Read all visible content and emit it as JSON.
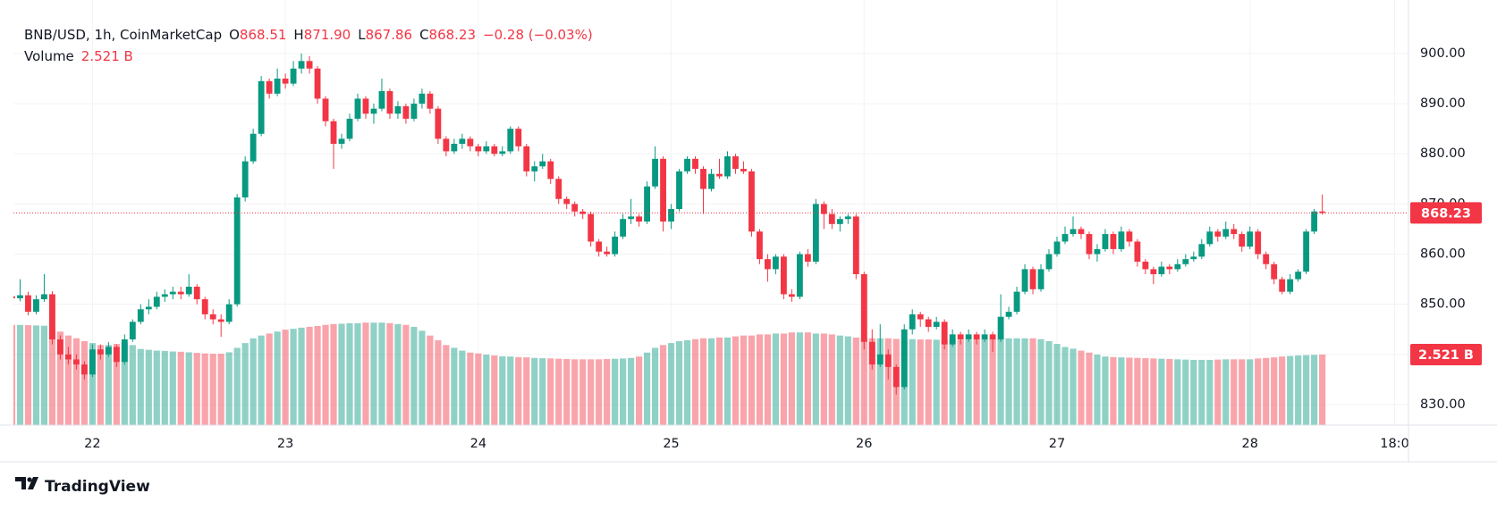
{
  "chart_data": {
    "type": "candlestick",
    "title": "BNB/USD, 1h, CoinMarketCap",
    "ohlc_legend": [
      {
        "key": "O",
        "text": "868.51"
      },
      {
        "key": "H",
        "text": "871.90"
      },
      {
        "key": "L",
        "text": "867.86"
      },
      {
        "key": "C",
        "text": "868.23"
      }
    ],
    "change": "−0.28 (−0.03%)",
    "volume_name": "Volume",
    "last_volume_label": "2.521 B",
    "watermark": "TradingView",
    "up_color": "#089981",
    "down_color": "#f23645",
    "grid": true,
    "ylim": [
      825.9,
      908
    ],
    "yticks": [
      {
        "value": 830,
        "label": "830.00"
      },
      {
        "value": 840,
        "label": "840.00"
      },
      {
        "value": 850,
        "label": "850.00"
      },
      {
        "value": 860,
        "label": "860.00"
      },
      {
        "value": 870,
        "label": "870.00"
      },
      {
        "value": 880,
        "label": "880.00"
      },
      {
        "value": 890,
        "label": "890.00"
      },
      {
        "value": 900,
        "label": "900.00"
      }
    ],
    "y2lim": [
      0,
      14.7
    ],
    "categories": [
      null,
      null,
      null,
      null,
      null,
      null,
      null,
      null,
      null,
      null,
      "22",
      null,
      null,
      null,
      null,
      null,
      null,
      null,
      null,
      null,
      null,
      null,
      null,
      null,
      null,
      null,
      null,
      null,
      null,
      null,
      null,
      null,
      null,
      null,
      "23",
      null,
      null,
      null,
      null,
      null,
      null,
      null,
      null,
      null,
      null,
      null,
      null,
      null,
      null,
      null,
      null,
      null,
      null,
      null,
      null,
      null,
      null,
      null,
      "24",
      null,
      null,
      null,
      null,
      null,
      null,
      null,
      null,
      null,
      null,
      null,
      null,
      null,
      null,
      null,
      null,
      null,
      null,
      null,
      null,
      null,
      null,
      null,
      "25",
      null,
      null,
      null,
      null,
      null,
      null,
      null,
      null,
      null,
      null,
      null,
      null,
      null,
      null,
      null,
      null,
      null,
      null,
      null,
      null,
      null,
      null,
      null,
      "26",
      null,
      null,
      null,
      null,
      null,
      null,
      null,
      null,
      null,
      null,
      null,
      null,
      null,
      null,
      null,
      null,
      null,
      null,
      null,
      null,
      null,
      null,
      null,
      "27",
      null,
      null,
      null,
      null,
      null,
      null,
      null,
      null,
      null,
      null,
      null,
      null,
      null,
      null,
      null,
      null,
      null,
      null,
      null,
      null,
      null,
      null,
      null,
      "28",
      null,
      null,
      null,
      null,
      null,
      null,
      null,
      null,
      null,
      null,
      null,
      null,
      null,
      null,
      null,
      null,
      null,
      "18:0",
      null
    ],
    "open": [
      851.6,
      851.2,
      851.8,
      848.5,
      851,
      852,
      843,
      840,
      839,
      838,
      836,
      841,
      840,
      841.5,
      838.5,
      843,
      846.5,
      849,
      849.5,
      851.5,
      852,
      852.5,
      852,
      853.5,
      851,
      848,
      847,
      846.5,
      850,
      871.3,
      878.5,
      884,
      894.5,
      892,
      895,
      894,
      897,
      898.5,
      897,
      891,
      886.5,
      882,
      883,
      887,
      891,
      888,
      889,
      892.5,
      888,
      889.5,
      887,
      890,
      892,
      889,
      883,
      880.5,
      882,
      883,
      881.5,
      880.5,
      881.5,
      880,
      880.5,
      885,
      881.5,
      876.5,
      877.5,
      878.5,
      875,
      871,
      870,
      868.5,
      868,
      862.5,
      860.5,
      860,
      863.5,
      867,
      867.5,
      866.5,
      873.5,
      879,
      866.5,
      869,
      876.5,
      879,
      877,
      873,
      876,
      875.5,
      879.5,
      877,
      876.5,
      864.5,
      859,
      857,
      859.5,
      852,
      851.5,
      860,
      858.5,
      870,
      868,
      866,
      867,
      867.5,
      856,
      842.5,
      838,
      840,
      837.5,
      833.5,
      845,
      848,
      847,
      845.5,
      846.5,
      842,
      844,
      843,
      844,
      843,
      844,
      843,
      847.5,
      848.5,
      852.5,
      857,
      853,
      857,
      860,
      862.5,
      864,
      865,
      864,
      860,
      861,
      864,
      861,
      864.5,
      862.5,
      858.5,
      857,
      856,
      857.5,
      857,
      858,
      859,
      859.5,
      862,
      864.5,
      863.5,
      865,
      864,
      861.5,
      864.5,
      860,
      858,
      855,
      852.5,
      855,
      856.5,
      864.5,
      868.51,
      null,
      null,
      null,
      null,
      null,
      null,
      null,
      null,
      null,
      null
    ],
    "high": [
      852.4,
      855,
      852.5,
      851.8,
      856,
      852.6,
      843.8,
      841.5,
      840,
      838.6,
      842,
      842,
      842.5,
      842,
      844,
      847,
      850,
      851,
      852.5,
      853,
      853.5,
      853.5,
      856,
      854,
      851.5,
      849,
      848,
      851,
      872,
      879.5,
      885,
      895.5,
      895,
      897,
      896,
      898.5,
      900,
      899.5,
      897.5,
      891.5,
      887,
      884,
      888,
      892,
      891.5,
      890,
      895,
      893,
      890.5,
      890,
      891,
      893,
      892.5,
      889.5,
      883.5,
      883,
      884,
      883.5,
      882,
      882.5,
      882,
      881.5,
      885.5,
      885.5,
      882,
      878.5,
      880,
      879,
      875.5,
      871.5,
      870.5,
      869,
      868.5,
      863,
      861.5,
      864.5,
      868,
      871,
      868,
      874.5,
      881.5,
      879.5,
      870,
      877,
      879.5,
      879.5,
      877.5,
      877,
      879,
      880.5,
      880,
      878.5,
      877,
      865,
      860,
      860,
      860,
      853,
      860.5,
      861,
      871,
      870.5,
      869,
      867.5,
      868,
      868,
      856.5,
      845,
      846,
      841,
      838,
      846,
      849,
      848.5,
      847.5,
      847.5,
      847,
      845,
      844.5,
      845,
      844.5,
      845,
      844.5,
      852,
      849.5,
      853.5,
      858,
      857.5,
      858,
      861,
      863.5,
      865.5,
      867.5,
      865.5,
      864.5,
      862,
      865,
      864.5,
      865.5,
      865,
      863,
      859,
      857.5,
      858.5,
      858,
      859,
      860,
      860.5,
      863,
      865.5,
      865,
      866.5,
      866,
      864.5,
      865.5,
      865,
      860.5,
      858.5,
      855.5,
      856,
      857,
      865,
      869,
      871.9,
      null,
      null,
      null,
      null,
      null,
      null,
      null,
      null,
      null,
      null
    ],
    "low": [
      850.5,
      850.6,
      847.8,
      848,
      850.5,
      842,
      839,
      838,
      837,
      835,
      835.5,
      839,
      839.5,
      837.5,
      838,
      842.5,
      846,
      848,
      849,
      850.5,
      851,
      851,
      851.5,
      850,
      847,
      846,
      843.5,
      846,
      849.5,
      870.5,
      878,
      883.5,
      891,
      891.5,
      893,
      893.5,
      896,
      896,
      890,
      885.5,
      877,
      881,
      882.5,
      886.5,
      887,
      886,
      888.5,
      887,
      887,
      886,
      886.5,
      889,
      888,
      882,
      879.5,
      880,
      881,
      880.5,
      879.5,
      880,
      879.5,
      879.5,
      880,
      880.5,
      875.5,
      874.5,
      877,
      874,
      870,
      869,
      867.5,
      867,
      861.5,
      859.5,
      859.5,
      859.5,
      863,
      866,
      865.5,
      866,
      873,
      864.5,
      865,
      868.5,
      876,
      876,
      868,
      872.5,
      875,
      875,
      876,
      876,
      863.5,
      858,
      854.5,
      856,
      851,
      850.5,
      851,
      857.5,
      858,
      865,
      865,
      864.5,
      866,
      855,
      841,
      837,
      837.5,
      835,
      832,
      833,
      844,
      845.5,
      844.5,
      845,
      841,
      841.5,
      842,
      842.5,
      842,
      842.5,
      840.5,
      842.5,
      847,
      848,
      852,
      852,
      852.5,
      856.5,
      859.5,
      862,
      863.5,
      863,
      859,
      858.5,
      860.5,
      860,
      860.5,
      861.5,
      857.5,
      856,
      854,
      855.5,
      856,
      856.5,
      857.5,
      858.5,
      859,
      861.5,
      862.5,
      863,
      863,
      860.5,
      861,
      859,
      857,
      854,
      852,
      852,
      854.5,
      856,
      864,
      867.86,
      null,
      null,
      null,
      null,
      null,
      null,
      null,
      null,
      null,
      null
    ],
    "close": [
      851.2,
      851.8,
      848.5,
      851,
      852,
      843,
      840,
      839,
      838,
      836,
      841,
      840,
      841.5,
      838.5,
      843,
      846.5,
      849,
      849.5,
      851.5,
      852,
      852.5,
      852,
      853.5,
      851,
      848,
      847,
      846.5,
      850,
      871.3,
      878.5,
      884,
      894.5,
      892,
      895,
      894,
      897,
      898.5,
      897,
      891,
      886.5,
      882,
      883,
      887,
      891,
      888,
      889,
      892.5,
      888,
      889.5,
      887,
      890,
      892,
      889,
      883,
      880.5,
      882,
      883,
      881.5,
      880.5,
      881.5,
      880,
      880.5,
      885,
      881.5,
      876.5,
      877.5,
      878.5,
      875,
      871,
      870,
      868.5,
      868,
      862.5,
      860.5,
      860,
      863.5,
      867,
      867.5,
      866.5,
      873.5,
      879,
      866.5,
      869,
      876.5,
      879,
      877,
      873,
      876,
      875.5,
      879.5,
      877,
      876.5,
      864.5,
      859,
      857,
      859.5,
      852,
      851.5,
      860,
      858.5,
      870,
      868,
      866,
      867,
      867.5,
      856,
      842.5,
      838,
      840,
      837.5,
      833.5,
      845,
      848,
      847,
      845.5,
      846.5,
      842,
      844,
      843,
      844,
      843,
      844,
      843,
      847.5,
      848.5,
      852.5,
      857,
      853,
      857,
      860,
      862.5,
      864,
      865,
      864,
      860,
      861,
      864,
      861,
      864.5,
      862.5,
      858.5,
      857,
      856,
      857.5,
      857,
      858,
      859,
      859.5,
      862,
      864.5,
      863.5,
      865,
      864,
      861.5,
      864.5,
      860,
      858,
      855,
      852.5,
      855,
      856.5,
      864.5,
      868.51,
      868.23,
      null,
      null,
      null,
      null,
      null,
      null,
      null,
      null,
      null,
      null
    ],
    "volume": [
      3.58,
      3.58,
      3.57,
      3.56,
      3.55,
      3.44,
      3.34,
      3.2,
      3.1,
      3.0,
      2.93,
      2.86,
      2.86,
      2.9,
      2.93,
      2.86,
      2.72,
      2.69,
      2.66,
      2.65,
      2.63,
      2.62,
      2.6,
      2.58,
      2.56,
      2.55,
      2.55,
      2.6,
      2.76,
      2.93,
      3.1,
      3.2,
      3.27,
      3.34,
      3.41,
      3.44,
      3.48,
      3.51,
      3.54,
      3.58,
      3.61,
      3.62,
      3.64,
      3.64,
      3.66,
      3.66,
      3.66,
      3.64,
      3.61,
      3.58,
      3.51,
      3.37,
      3.2,
      3.03,
      2.86,
      2.76,
      2.66,
      2.59,
      2.56,
      2.52,
      2.49,
      2.46,
      2.45,
      2.43,
      2.42,
      2.4,
      2.39,
      2.38,
      2.37,
      2.36,
      2.35,
      2.35,
      2.35,
      2.35,
      2.36,
      2.37,
      2.38,
      2.4,
      2.45,
      2.59,
      2.76,
      2.86,
      2.93,
      3.0,
      3.03,
      3.07,
      3.1,
      3.1,
      3.13,
      3.13,
      3.17,
      3.2,
      3.2,
      3.24,
      3.24,
      3.27,
      3.27,
      3.31,
      3.31,
      3.31,
      3.27,
      3.27,
      3.24,
      3.2,
      3.17,
      3.13,
      3.1,
      3.1,
      3.1,
      3.1,
      3.08,
      3.07,
      3.07,
      3.06,
      3.06,
      3.05,
      3.05,
      3.05,
      3.05,
      3.05,
      3.06,
      3.07,
      3.08,
      3.1,
      3.1,
      3.1,
      3.1,
      3.1,
      3.07,
      3.0,
      2.9,
      2.79,
      2.73,
      2.66,
      2.59,
      2.52,
      2.45,
      2.43,
      2.42,
      2.41,
      2.4,
      2.39,
      2.38,
      2.37,
      2.36,
      2.35,
      2.34,
      2.33,
      2.33,
      2.33,
      2.34,
      2.35,
      2.35,
      2.35,
      2.35,
      2.38,
      2.4,
      2.42,
      2.45,
      2.47,
      2.49,
      2.5,
      2.51,
      2.521,
      null,
      null,
      null,
      null,
      null,
      null,
      null,
      null,
      null,
      null
    ]
  }
}
